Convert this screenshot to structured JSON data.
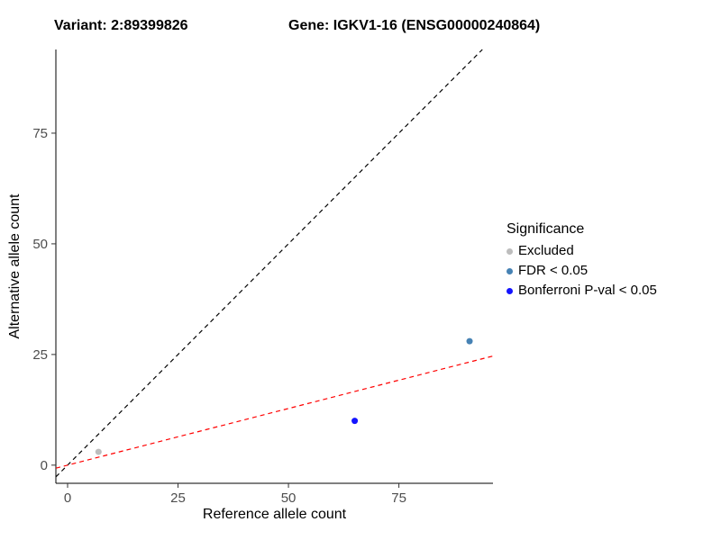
{
  "header": {
    "left_title": "Variant: 2:89399826",
    "right_title": "Gene: IGKV1-16 (ENSG00000240864)"
  },
  "chart_data": {
    "type": "scatter",
    "title": "",
    "xlabel": "Reference allele count",
    "ylabel": "Alternative allele count",
    "xlim": [
      -2.65,
      96.3
    ],
    "ylim": [
      -4.1,
      93.9
    ],
    "xticks": [
      0,
      25,
      50,
      75
    ],
    "yticks": [
      0,
      25,
      50,
      75
    ],
    "grid": false,
    "background": "#ffffff",
    "axis_text_color": "#4d4d4d",
    "points": [
      {
        "x": 7,
        "y": 3,
        "series": "Excluded",
        "color": "#bdbdbd"
      },
      {
        "x": 65,
        "y": 10,
        "series": "Bonferroni P-val < 0.05",
        "color": "#1414ff"
      },
      {
        "x": 91,
        "y": 28,
        "series": "FDR < 0.05",
        "color": "#4682b4"
      }
    ],
    "lines": [
      {
        "name": "identity",
        "slope": 1,
        "intercept": 0,
        "color": "#000000",
        "dashed": true
      },
      {
        "name": "regression",
        "slope": 0.256,
        "intercept": 0,
        "color": "#ff0000",
        "dashed": true
      }
    ],
    "legend": {
      "title": "Significance",
      "position": "right",
      "items": [
        {
          "label": "Excluded",
          "color": "#bdbdbd"
        },
        {
          "label": "FDR < 0.05",
          "color": "#4682b4"
        },
        {
          "label": "Bonferroni P-val < 0.05",
          "color": "#1414ff"
        }
      ]
    }
  }
}
